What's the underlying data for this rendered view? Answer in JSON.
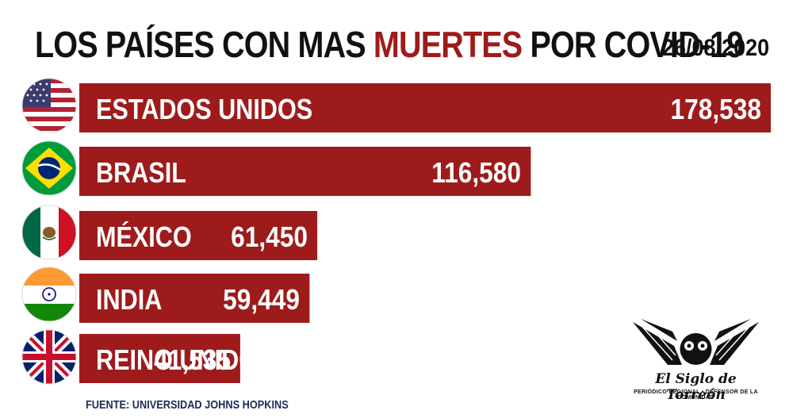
{
  "title": {
    "part1": "LOS PAÍSES CON MAS ",
    "highlight": "MUERTES",
    "part2": " POR COVID-19"
  },
  "date": "26/08/2020",
  "source": "FUENTE: UNIVERSIDAD JOHNS HOPKINS",
  "logo": {
    "name": "El Siglo de Torreón",
    "tagline": "PERIÓDICO REGIONAL  •  DEFENSOR DE LA COMUNIDAD"
  },
  "colors": {
    "bar": "#9e1b1b",
    "highlight": "#9e1b1b",
    "text": "#111111"
  },
  "chart_data": {
    "type": "bar",
    "orientation": "horizontal",
    "categories": [
      "ESTADOS UNIDOS",
      "BRASIL",
      "MÉXICO",
      "INDIA",
      "REINO UNIDO"
    ],
    "values": [
      178538,
      116580,
      61450,
      59449,
      41535
    ],
    "value_labels": [
      "178,538",
      "116,580",
      "61,450",
      "59,449",
      "41,535"
    ],
    "flags": [
      "usa-flag-icon",
      "brazil-flag-icon",
      "mexico-flag-icon",
      "india-flag-icon",
      "uk-flag-icon"
    ]
  }
}
